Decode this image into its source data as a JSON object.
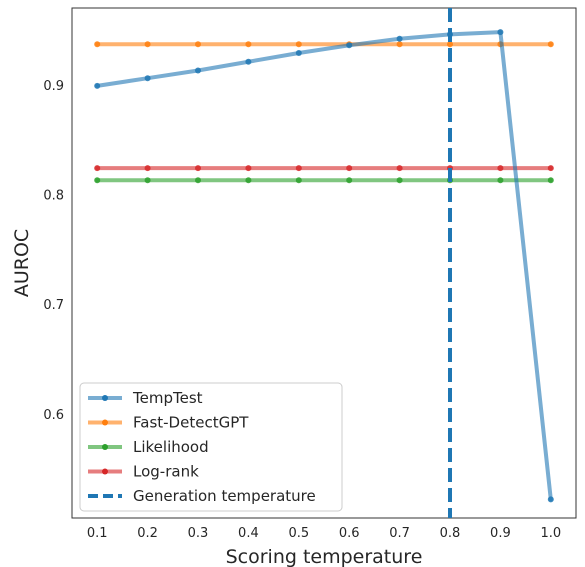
{
  "chart_data": {
    "type": "line",
    "xlabel": "Scoring temperature",
    "ylabel": "AUROC",
    "x": [
      0.1,
      0.2,
      0.3,
      0.4,
      0.5,
      0.6,
      0.7,
      0.8,
      0.9,
      1.0
    ],
    "xlim": [
      0.05,
      1.05
    ],
    "ylim": [
      0.505,
      0.97
    ],
    "x_ticks": [
      "0.1",
      "0.2",
      "0.3",
      "0.4",
      "0.5",
      "0.6",
      "0.7",
      "0.8",
      "0.9",
      "1.0"
    ],
    "y_ticks": [
      "0.6",
      "0.7",
      "0.8",
      "0.9"
    ],
    "y_tick_values": [
      0.6,
      0.7,
      0.8,
      0.9
    ],
    "grid": false,
    "legend_position": "lower-left",
    "series": [
      {
        "name": "TempTest",
        "color": "#1f77b4",
        "values": [
          0.899,
          0.906,
          0.913,
          0.921,
          0.929,
          0.936,
          0.942,
          0.946,
          0.948,
          0.522
        ]
      },
      {
        "name": "Fast-DetectGPT",
        "color": "#ff7f0e",
        "values": [
          0.937,
          0.937,
          0.937,
          0.937,
          0.937,
          0.937,
          0.937,
          0.937,
          0.937,
          0.937
        ]
      },
      {
        "name": "Likelihood",
        "color": "#2ca02c",
        "values": [
          0.813,
          0.813,
          0.813,
          0.813,
          0.813,
          0.813,
          0.813,
          0.813,
          0.813,
          0.813
        ]
      },
      {
        "name": "Log-rank",
        "color": "#d62728",
        "values": [
          0.824,
          0.824,
          0.824,
          0.824,
          0.824,
          0.824,
          0.824,
          0.824,
          0.824,
          0.824
        ]
      }
    ],
    "vertical_line": {
      "name": "Generation temperature",
      "x": 0.8,
      "color": "#1f77b4",
      "style": "dashed"
    }
  }
}
